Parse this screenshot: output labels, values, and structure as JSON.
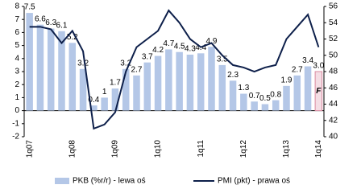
{
  "chart_data": {
    "type": "bar-line",
    "categories": [
      "1q07",
      null,
      null,
      null,
      "1q08",
      null,
      null,
      null,
      "1q09",
      null,
      null,
      null,
      "1q10",
      null,
      null,
      null,
      "1q11",
      null,
      null,
      null,
      "1q12",
      null,
      null,
      null,
      "1q13",
      null,
      null,
      "1q14"
    ],
    "series": [
      {
        "name": "PKB (%r/r) - lewa oś",
        "color": "#b4c7e7",
        "type": "bar",
        "forecast_color": "#d98aa0",
        "values": [
          7.5,
          6.6,
          6.3,
          6.1,
          5.2,
          3.2,
          0.4,
          1,
          1.7,
          3.2,
          2.7,
          3.7,
          4.2,
          4.7,
          4.5,
          4.3,
          4.4,
          4.9,
          3.5,
          2.3,
          1.3,
          0.7,
          0.5,
          0.8,
          1.9,
          2.7,
          3.4,
          3.0
        ],
        "value_labels": [
          "7.5",
          "6.6",
          "6.3",
          "6.1",
          "5.2",
          "3.2",
          "0.4",
          "1",
          "1.7",
          "3.2",
          "2.7",
          "3.7",
          "4.2",
          "4.7",
          "4.5",
          "4.3",
          "4.4",
          "4.9",
          "3.5",
          "2.3",
          "1.3",
          "0.7",
          "0.5",
          "0.8",
          "1.9",
          "2.7",
          "3.4",
          "3.0"
        ]
      },
      {
        "name": "PMI (pkt) - prawa oś",
        "color": "#0d1f4a",
        "type": "line",
        "axis": "y2",
        "values": [
          53.5,
          53.5,
          53.2,
          51.5,
          53,
          50.5,
          41,
          41.5,
          43,
          48,
          51,
          52,
          53,
          55.5,
          54,
          52,
          51,
          51.5,
          50,
          48.8,
          48.5,
          48,
          48.5,
          48.8,
          52,
          53.5,
          55,
          51
        ]
      }
    ],
    "forecast_marker": "F",
    "ylim": [
      -2,
      8
    ],
    "yticks": [
      -2,
      -1,
      0,
      1,
      2,
      3,
      4,
      5,
      6,
      7,
      8
    ],
    "y2lim": [
      40,
      56
    ],
    "y2ticks": [
      40,
      42,
      44,
      46,
      48,
      50,
      52,
      54,
      56
    ],
    "legend": "bottom"
  }
}
